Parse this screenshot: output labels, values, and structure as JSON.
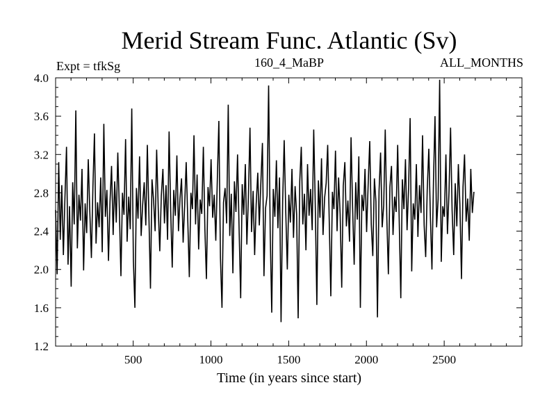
{
  "chart_data": {
    "type": "line",
    "title": "Merid Stream Func. Atlantic (Sv)",
    "subtitle_left": "Expt = tfkSg",
    "subtitle_center": "160_4_MaBP",
    "subtitle_right": "ALL_MONTHS",
    "xlabel": "Time (in years since start)",
    "ylabel": "",
    "xlim": [
      1,
      3000
    ],
    "ylim": [
      1.2,
      4.0
    ],
    "x_ticks": [
      500,
      1000,
      1500,
      2000,
      2500
    ],
    "x_tick_labels": [
      "500",
      "1000",
      "1500",
      "2000",
      "2500"
    ],
    "y_ticks": [
      1.2,
      1.6,
      2.0,
      2.4,
      2.8,
      3.2,
      3.6,
      4.0
    ],
    "y_tick_labels": [
      "1.2",
      "1.6",
      "2.0",
      "2.4",
      "2.8",
      "3.2",
      "3.6",
      "4.0"
    ],
    "series": [
      {
        "name": "Merid Stream Func. Atlantic",
        "x_start": 1,
        "x_step": 10,
        "values": [
          2.62,
          1.95,
          3.12,
          2.31,
          2.88,
          2.15,
          2.74,
          3.28,
          2.05,
          2.66,
          1.82,
          2.91,
          2.47,
          3.66,
          2.22,
          2.78,
          2.51,
          3.05,
          1.99,
          2.69,
          2.38,
          3.15,
          2.61,
          2.12,
          2.86,
          3.42,
          2.27,
          2.7,
          2.44,
          2.96,
          2.18,
          3.52,
          2.55,
          2.83,
          2.09,
          2.71,
          3.08,
          2.36,
          2.92,
          2.49,
          3.22,
          2.63,
          1.93,
          2.8,
          2.57,
          3.36,
          2.29,
          2.76,
          2.42,
          3.68,
          2.1,
          1.6,
          2.85,
          2.53,
          3.18,
          2.35,
          2.68,
          2.91,
          2.46,
          3.3,
          2.58,
          1.8,
          2.94,
          2.72,
          2.4,
          3.25,
          2.63,
          2.19,
          2.77,
          3.05,
          2.48,
          2.88,
          2.31,
          3.44,
          2.61,
          2.02,
          2.83,
          2.56,
          3.19,
          2.4,
          2.74,
          2.95,
          2.28,
          2.67,
          3.12,
          2.51,
          1.92,
          2.8,
          2.63,
          3.4,
          2.47,
          2.99,
          2.21,
          2.73,
          2.58,
          3.28,
          2.42,
          1.9,
          2.86,
          2.66,
          3.15,
          2.54,
          2.78,
          2.3,
          2.94,
          3.55,
          2.12,
          1.6,
          2.7,
          2.85,
          2.48,
          3.72,
          2.35,
          2.79,
          1.96,
          2.92,
          2.6,
          3.2,
          2.43,
          1.7,
          2.89,
          2.57,
          3.1,
          2.26,
          2.75,
          3.48,
          2.39,
          2.82,
          2.15,
          2.68,
          3.01,
          2.46,
          2.9,
          3.32,
          1.93,
          2.64,
          2.77,
          3.92,
          2.37,
          1.55,
          2.84,
          2.55,
          3.14,
          2.43,
          2.96,
          1.45,
          2.71,
          3.35,
          2.62,
          2.0,
          2.78,
          2.49,
          3.05,
          2.33,
          2.87,
          2.58,
          1.49,
          2.92,
          3.28,
          2.47,
          2.79,
          2.2,
          3.1,
          2.56,
          2.84,
          2.41,
          3.46,
          2.68,
          1.63,
          2.93,
          2.54,
          3.16,
          2.36,
          2.75,
          2.9,
          3.3,
          2.48,
          1.72,
          2.81,
          2.63,
          3.24,
          2.4,
          2.96,
          2.58,
          1.81,
          2.87,
          3.12,
          2.45,
          2.72,
          2.29,
          3.38,
          2.66,
          2.05,
          2.91,
          2.52,
          3.18,
          1.6,
          2.78,
          2.61,
          3.05,
          2.39,
          2.88,
          3.34,
          2.47,
          2.14,
          2.95,
          2.71,
          1.5,
          2.82,
          3.22,
          2.44,
          2.67,
          3.46,
          2.53,
          1.95,
          2.86,
          3.08,
          2.36,
          2.76,
          2.6,
          3.3,
          2.48,
          1.7,
          2.94,
          2.63,
          3.15,
          2.41,
          2.85,
          3.58,
          1.98,
          2.69,
          2.52,
          3.1,
          2.34,
          2.88,
          2.59,
          3.4,
          2.46,
          2.13,
          2.83,
          3.26,
          2.57,
          2.0,
          2.92,
          3.6,
          2.44,
          2.73,
          3.98,
          2.08,
          2.66,
          2.55,
          3.2,
          2.37,
          2.82,
          3.48,
          2.62,
          2.15,
          2.9,
          2.45,
          3.1,
          2.68,
          1.9,
          2.86,
          3.2,
          2.5,
          2.74,
          2.3,
          3.05,
          2.59,
          2.81
        ]
      }
    ]
  }
}
